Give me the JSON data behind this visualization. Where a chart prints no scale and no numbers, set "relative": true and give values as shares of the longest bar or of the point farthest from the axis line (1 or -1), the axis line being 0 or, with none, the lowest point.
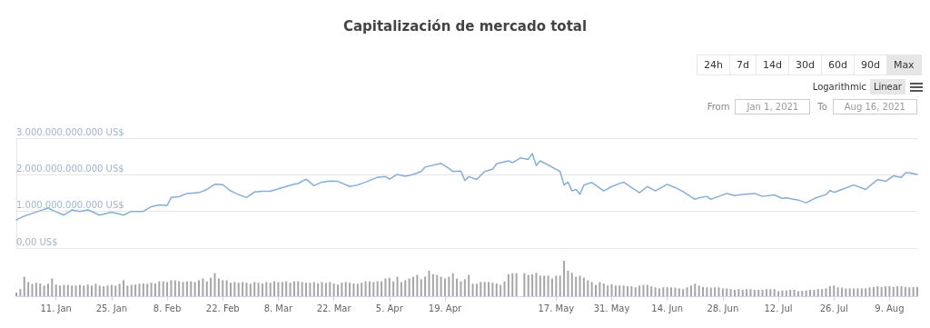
{
  "chart_data": [
    {
      "type": "line",
      "title": "Capitalización de mercado total",
      "annotations": [
        "24h",
        "7d",
        "14d",
        "30d",
        "60d",
        "90d",
        "Max",
        "Logarithmic",
        "Linear",
        "From",
        "Jan 1, 2021",
        "To",
        "Aug 16, 2021"
      ],
      "x": [
        "2021-01-01",
        "2021-01-03",
        "2021-01-07",
        "2021-01-09",
        "2021-01-11",
        "2021-01-13",
        "2021-01-15",
        "2021-01-17",
        "2021-01-19",
        "2021-01-22",
        "2021-01-25",
        "2021-01-28",
        "2021-01-30",
        "2021-02-02",
        "2021-02-04",
        "2021-02-06",
        "2021-02-08",
        "2021-02-09",
        "2021-02-11",
        "2021-02-13",
        "2021-02-16",
        "2021-02-18",
        "2021-02-20",
        "2021-02-22",
        "2021-02-24",
        "2021-02-26",
        "2021-02-28",
        "2021-03-02",
        "2021-03-04",
        "2021-03-06",
        "2021-03-09",
        "2021-03-12",
        "2021-03-13",
        "2021-03-15",
        "2021-03-17",
        "2021-03-19",
        "2021-03-21",
        "2021-03-23",
        "2021-03-26",
        "2021-03-28",
        "2021-03-30",
        "2021-04-02",
        "2021-04-04",
        "2021-04-05",
        "2021-04-07",
        "2021-04-09",
        "2021-04-11",
        "2021-04-13",
        "2021-04-14",
        "2021-04-18",
        "2021-04-20",
        "2021-04-21",
        "2021-04-23",
        "2021-04-24",
        "2021-04-25",
        "2021-04-27",
        "2021-04-29",
        "2021-05-01",
        "2021-05-02",
        "2021-05-05",
        "2021-05-06",
        "2021-05-08",
        "2021-05-10",
        "2021-05-11",
        "2021-05-12",
        "2021-05-13",
        "2021-05-18",
        "2021-05-19",
        "2021-05-20",
        "2021-05-21",
        "2021-05-22",
        "2021-05-23",
        "2021-05-24",
        "2021-05-26",
        "2021-05-29",
        "2021-05-31",
        "2021-06-03",
        "2021-06-05",
        "2021-06-07",
        "2021-06-09",
        "2021-06-11",
        "2021-06-14",
        "2021-06-16",
        "2021-06-18",
        "2021-06-21",
        "2021-06-22",
        "2021-06-24",
        "2021-06-25",
        "2021-06-29",
        "2021-07-01",
        "2021-07-03",
        "2021-07-06",
        "2021-07-08",
        "2021-07-11",
        "2021-07-13",
        "2021-07-14",
        "2021-07-17",
        "2021-07-19",
        "2021-07-21",
        "2021-07-24",
        "2021-07-25",
        "2021-07-26",
        "2021-07-28",
        "2021-07-31",
        "2021-08-03",
        "2021-08-06",
        "2021-08-08",
        "2021-08-10",
        "2021-08-12",
        "2021-08-13",
        "2021-08-14",
        "2021-08-16"
      ],
      "series": [
        {
          "color": "#86aed6",
          "values": [
            770000000000.0,
            870000000000.0,
            1020000000000.0,
            1090000000000.0,
            990000000000.0,
            900000000000.0,
            1040000000000.0,
            1000000000000.0,
            1040000000000.0,
            900000000000.0,
            980000000000.0,
            900000000000.0,
            1000000000000.0,
            1000000000000.0,
            1130000000000.0,
            1180000000000.0,
            1160000000000.0,
            1380000000000.0,
            1400000000000.0,
            1490000000000.0,
            1510000000000.0,
            1600000000000.0,
            1740000000000.0,
            1730000000000.0,
            1560000000000.0,
            1460000000000.0,
            1380000000000.0,
            1530000000000.0,
            1550000000000.0,
            1550000000000.0,
            1650000000000.0,
            1740000000000.0,
            1760000000000.0,
            1880000000000.0,
            1700000000000.0,
            1800000000000.0,
            1830000000000.0,
            1820000000000.0,
            1680000000000.0,
            1720000000000.0,
            1800000000000.0,
            1930000000000.0,
            1950000000000.0,
            1880000000000.0,
            2010000000000.0,
            1960000000000.0,
            2010000000000.0,
            2090000000000.0,
            2210000000000.0,
            2310000000000.0,
            2170000000000.0,
            2090000000000.0,
            2100000000000.0,
            1840000000000.0,
            1950000000000.0,
            1870000000000.0,
            2090000000000.0,
            2150000000000.0,
            2300000000000.0,
            2380000000000.0,
            2330000000000.0,
            2460000000000.0,
            2420000000000.0,
            2580000000000.0,
            2250000000000.0,
            2380000000000.0,
            2090000000000.0,
            1720000000000.0,
            1800000000000.0,
            1560000000000.0,
            1600000000000.0,
            1470000000000.0,
            1720000000000.0,
            1790000000000.0,
            1560000000000.0,
            1680000000000.0,
            1800000000000.0,
            1650000000000.0,
            1510000000000.0,
            1680000000000.0,
            1560000000000.0,
            1740000000000.0,
            1650000000000.0,
            1540000000000.0,
            1330000000000.0,
            1370000000000.0,
            1410000000000.0,
            1330000000000.0,
            1490000000000.0,
            1430000000000.0,
            1460000000000.0,
            1490000000000.0,
            1410000000000.0,
            1450000000000.0,
            1350000000000.0,
            1370000000000.0,
            1310000000000.0,
            1230000000000.0,
            1350000000000.0,
            1460000000000.0,
            1570000000000.0,
            1520000000000.0,
            1600000000000.0,
            1720000000000.0,
            1600000000000.0,
            1870000000000.0,
            1820000000000.0,
            1970000000000.0,
            1930000000000.0,
            2050000000000.0,
            2050000000000.0,
            2010000000000.0
          ]
        }
      ],
      "xlim": [
        "2021-01-01",
        "2021-08-16"
      ],
      "ylim": [
        0,
        3000000000000.0
      ],
      "yticks": [
        {
          "value": 0,
          "label": "0,00 US$"
        },
        {
          "value": 1000000000000.0,
          "label": "1.000.000.000.000 US$"
        },
        {
          "value": 2000000000000.0,
          "label": "2.000.000.000.000 US$"
        },
        {
          "value": 3000000000000.0,
          "label": "3.000.000.000.000 US$"
        }
      ],
      "grid": "y",
      "tick_labels": "y",
      "marker": "none",
      "line_style": "solid"
    },
    {
      "type": "bar",
      "relative": true,
      "color": "#a6a6a6",
      "x": [
        "2021-01-01",
        "2021-01-02",
        "2021-01-03",
        "2021-01-04",
        "2021-01-05",
        "2021-01-06",
        "2021-01-07",
        "2021-01-08",
        "2021-01-09",
        "2021-01-10",
        "2021-01-11",
        "2021-01-12",
        "2021-01-13",
        "2021-01-14",
        "2021-01-15",
        "2021-01-16",
        "2021-01-17",
        "2021-01-18",
        "2021-01-19",
        "2021-01-20",
        "2021-01-21",
        "2021-01-22",
        "2021-01-23",
        "2021-01-24",
        "2021-01-25",
        "2021-01-26",
        "2021-01-27",
        "2021-01-28",
        "2021-01-29",
        "2021-01-30",
        "2021-01-31",
        "2021-02-01",
        "2021-02-02",
        "2021-02-03",
        "2021-02-04",
        "2021-02-05",
        "2021-02-06",
        "2021-02-07",
        "2021-02-08",
        "2021-02-09",
        "2021-02-10",
        "2021-02-11",
        "2021-02-12",
        "2021-02-13",
        "2021-02-14",
        "2021-02-15",
        "2021-02-16",
        "2021-02-17",
        "2021-02-18",
        "2021-02-19",
        "2021-02-20",
        "2021-02-21",
        "2021-02-22",
        "2021-02-23",
        "2021-02-24",
        "2021-02-25",
        "2021-02-26",
        "2021-02-27",
        "2021-02-28",
        "2021-03-01",
        "2021-03-02",
        "2021-03-03",
        "2021-03-04",
        "2021-03-05",
        "2021-03-06",
        "2021-03-07",
        "2021-03-08",
        "2021-03-09",
        "2021-03-10",
        "2021-03-11",
        "2021-03-12",
        "2021-03-13",
        "2021-03-14",
        "2021-03-15",
        "2021-03-16",
        "2021-03-17",
        "2021-03-18",
        "2021-03-19",
        "2021-03-20",
        "2021-03-21",
        "2021-03-22",
        "2021-03-23",
        "2021-03-24",
        "2021-03-25",
        "2021-03-26",
        "2021-03-27",
        "2021-03-28",
        "2021-03-29",
        "2021-03-30",
        "2021-03-31",
        "2021-04-01",
        "2021-04-02",
        "2021-04-03",
        "2021-04-04",
        "2021-04-05",
        "2021-04-06",
        "2021-04-07",
        "2021-04-08",
        "2021-04-09",
        "2021-04-10",
        "2021-04-11",
        "2021-04-12",
        "2021-04-13",
        "2021-04-14",
        "2021-04-15",
        "2021-04-16",
        "2021-04-17",
        "2021-04-18",
        "2021-04-19",
        "2021-04-20",
        "2021-04-21",
        "2021-04-22",
        "2021-04-23",
        "2021-04-24",
        "2021-04-25",
        "2021-04-26",
        "2021-04-27",
        "2021-04-28",
        "2021-04-29",
        "2021-04-30",
        "2021-05-01",
        "2021-05-02",
        "2021-05-03",
        "2021-05-04",
        "2021-05-05",
        "2021-05-06",
        "2021-05-07",
        "2021-05-08",
        "2021-05-09",
        "2021-05-10",
        "2021-05-11",
        "2021-05-12",
        "2021-05-13",
        "2021-05-14",
        "2021-05-15",
        "2021-05-16",
        "2021-05-17",
        "2021-05-18",
        "2021-05-19",
        "2021-05-20",
        "2021-05-21",
        "2021-05-22",
        "2021-05-23",
        "2021-05-24",
        "2021-05-25",
        "2021-05-26",
        "2021-05-27",
        "2021-05-28",
        "2021-05-29",
        "2021-05-30",
        "2021-05-31",
        "2021-06-01",
        "2021-06-02",
        "2021-06-03",
        "2021-06-04",
        "2021-06-05",
        "2021-06-06",
        "2021-06-07",
        "2021-06-08",
        "2021-06-09",
        "2021-06-10",
        "2021-06-11",
        "2021-06-12",
        "2021-06-13",
        "2021-06-14",
        "2021-06-15",
        "2021-06-16",
        "2021-06-17",
        "2021-06-18",
        "2021-06-19",
        "2021-06-20",
        "2021-06-21",
        "2021-06-22",
        "2021-06-23",
        "2021-06-24",
        "2021-06-25",
        "2021-06-26",
        "2021-06-27",
        "2021-06-28",
        "2021-06-29",
        "2021-06-30",
        "2021-07-01",
        "2021-07-02",
        "2021-07-03",
        "2021-07-04",
        "2021-07-05",
        "2021-07-06",
        "2021-07-07",
        "2021-07-08",
        "2021-07-09",
        "2021-07-10",
        "2021-07-11",
        "2021-07-12",
        "2021-07-13",
        "2021-07-14",
        "2021-07-15",
        "2021-07-16",
        "2021-07-17",
        "2021-07-18",
        "2021-07-19",
        "2021-07-20",
        "2021-07-21",
        "2021-07-22",
        "2021-07-23",
        "2021-07-24",
        "2021-07-25",
        "2021-07-26",
        "2021-07-27",
        "2021-07-28",
        "2021-07-29",
        "2021-07-30",
        "2021-07-31",
        "2021-08-01",
        "2021-08-02",
        "2021-08-03",
        "2021-08-04",
        "2021-08-05",
        "2021-08-06",
        "2021-08-07",
        "2021-08-08",
        "2021-08-09",
        "2021-08-10",
        "2021-08-11",
        "2021-08-12",
        "2021-08-13",
        "2021-08-14",
        "2021-08-15",
        "2021-08-16"
      ],
      "values": [
        0.1,
        0.2,
        0.55,
        0.4,
        0.35,
        0.38,
        0.36,
        0.3,
        0.35,
        0.5,
        0.33,
        0.3,
        0.32,
        0.32,
        0.3,
        0.3,
        0.32,
        0.3,
        0.33,
        0.3,
        0.35,
        0.3,
        0.28,
        0.3,
        0.32,
        0.3,
        0.35,
        0.45,
        0.3,
        0.32,
        0.33,
        0.35,
        0.36,
        0.35,
        0.38,
        0.36,
        0.42,
        0.42,
        0.4,
        0.45,
        0.45,
        0.42,
        0.4,
        0.42,
        0.42,
        0.4,
        0.45,
        0.5,
        0.42,
        0.52,
        0.65,
        0.5,
        0.45,
        0.45,
        0.38,
        0.4,
        0.38,
        0.4,
        0.38,
        0.35,
        0.4,
        0.38,
        0.36,
        0.4,
        0.38,
        0.42,
        0.4,
        0.4,
        0.42,
        0.38,
        0.42,
        0.42,
        0.4,
        0.38,
        0.38,
        0.4,
        0.36,
        0.4,
        0.38,
        0.4,
        0.36,
        0.33,
        0.38,
        0.4,
        0.38,
        0.36,
        0.35,
        0.38,
        0.42,
        0.42,
        0.4,
        0.42,
        0.42,
        0.5,
        0.52,
        0.42,
        0.55,
        0.4,
        0.45,
        0.5,
        0.55,
        0.6,
        0.48,
        0.55,
        0.72,
        0.62,
        0.6,
        0.55,
        0.5,
        0.55,
        0.65,
        0.5,
        0.42,
        0.48,
        0.6,
        0.35,
        0.35,
        0.4,
        0.4,
        0.4,
        0.38,
        0.36,
        0.32,
        0.42,
        0.62,
        0.65,
        0.65,
        null,
        0.65,
        0.6,
        0.62,
        0.66,
        0.58,
        0.58,
        0.58,
        0.5,
        0.58,
        0.58,
        1.0,
        0.72,
        0.66,
        0.55,
        0.58,
        0.52,
        0.45,
        0.4,
        0.32,
        0.4,
        0.36,
        0.3,
        0.34,
        0.3,
        0.3,
        0.3,
        0.28,
        0.28,
        0.25,
        0.3,
        0.32,
        0.32,
        0.28,
        0.25,
        0.22,
        0.25,
        0.25,
        0.25,
        0.24,
        0.22,
        0.2,
        0.25,
        0.3,
        0.35,
        0.3,
        0.26,
        0.25,
        0.24,
        0.25,
        0.25,
        0.22,
        0.22,
        0.2,
        0.18,
        0.2,
        0.18,
        0.2,
        0.2,
        0.18,
        0.18,
        0.18,
        0.2,
        0.2,
        0.2,
        0.14,
        0.16,
        0.16,
        0.18,
        0.18,
        0.14,
        0.15,
        0.16,
        0.18,
        0.18,
        0.2,
        0.2,
        0.22,
        0.28,
        0.3,
        0.25,
        0.24,
        0.22,
        0.22,
        0.22,
        0.22,
        0.22,
        0.22,
        0.25,
        0.26,
        0.28,
        0.26,
        0.28,
        0.28,
        0.26,
        0.28,
        0.28,
        0.26,
        0.25,
        0.26,
        0.26
      ],
      "xlim": [
        "2021-01-01",
        "2021-08-16"
      ],
      "xticks": [
        {
          "value": "2021-01-11",
          "label": "11. Jan"
        },
        {
          "value": "2021-01-25",
          "label": "25. Jan"
        },
        {
          "value": "2021-02-08",
          "label": "8. Feb"
        },
        {
          "value": "2021-02-22",
          "label": "22. Feb"
        },
        {
          "value": "2021-03-08",
          "label": "8. Mar"
        },
        {
          "value": "2021-03-22",
          "label": "22. Mar"
        },
        {
          "value": "2021-04-05",
          "label": "5. Apr"
        },
        {
          "value": "2021-04-19",
          "label": "19. Apr"
        },
        {
          "value": "2021-05-17",
          "label": "17. May"
        },
        {
          "value": "2021-05-31",
          "label": "31. May"
        },
        {
          "value": "2021-06-14",
          "label": "14. Jun"
        },
        {
          "value": "2021-06-28",
          "label": "28. Jun"
        },
        {
          "value": "2021-07-12",
          "label": "12. Jul"
        },
        {
          "value": "2021-07-26",
          "label": "26. Jul"
        },
        {
          "value": "2021-08-09",
          "label": "9. Aug"
        }
      ],
      "tick_labels": "x",
      "grid": false
    }
  ]
}
